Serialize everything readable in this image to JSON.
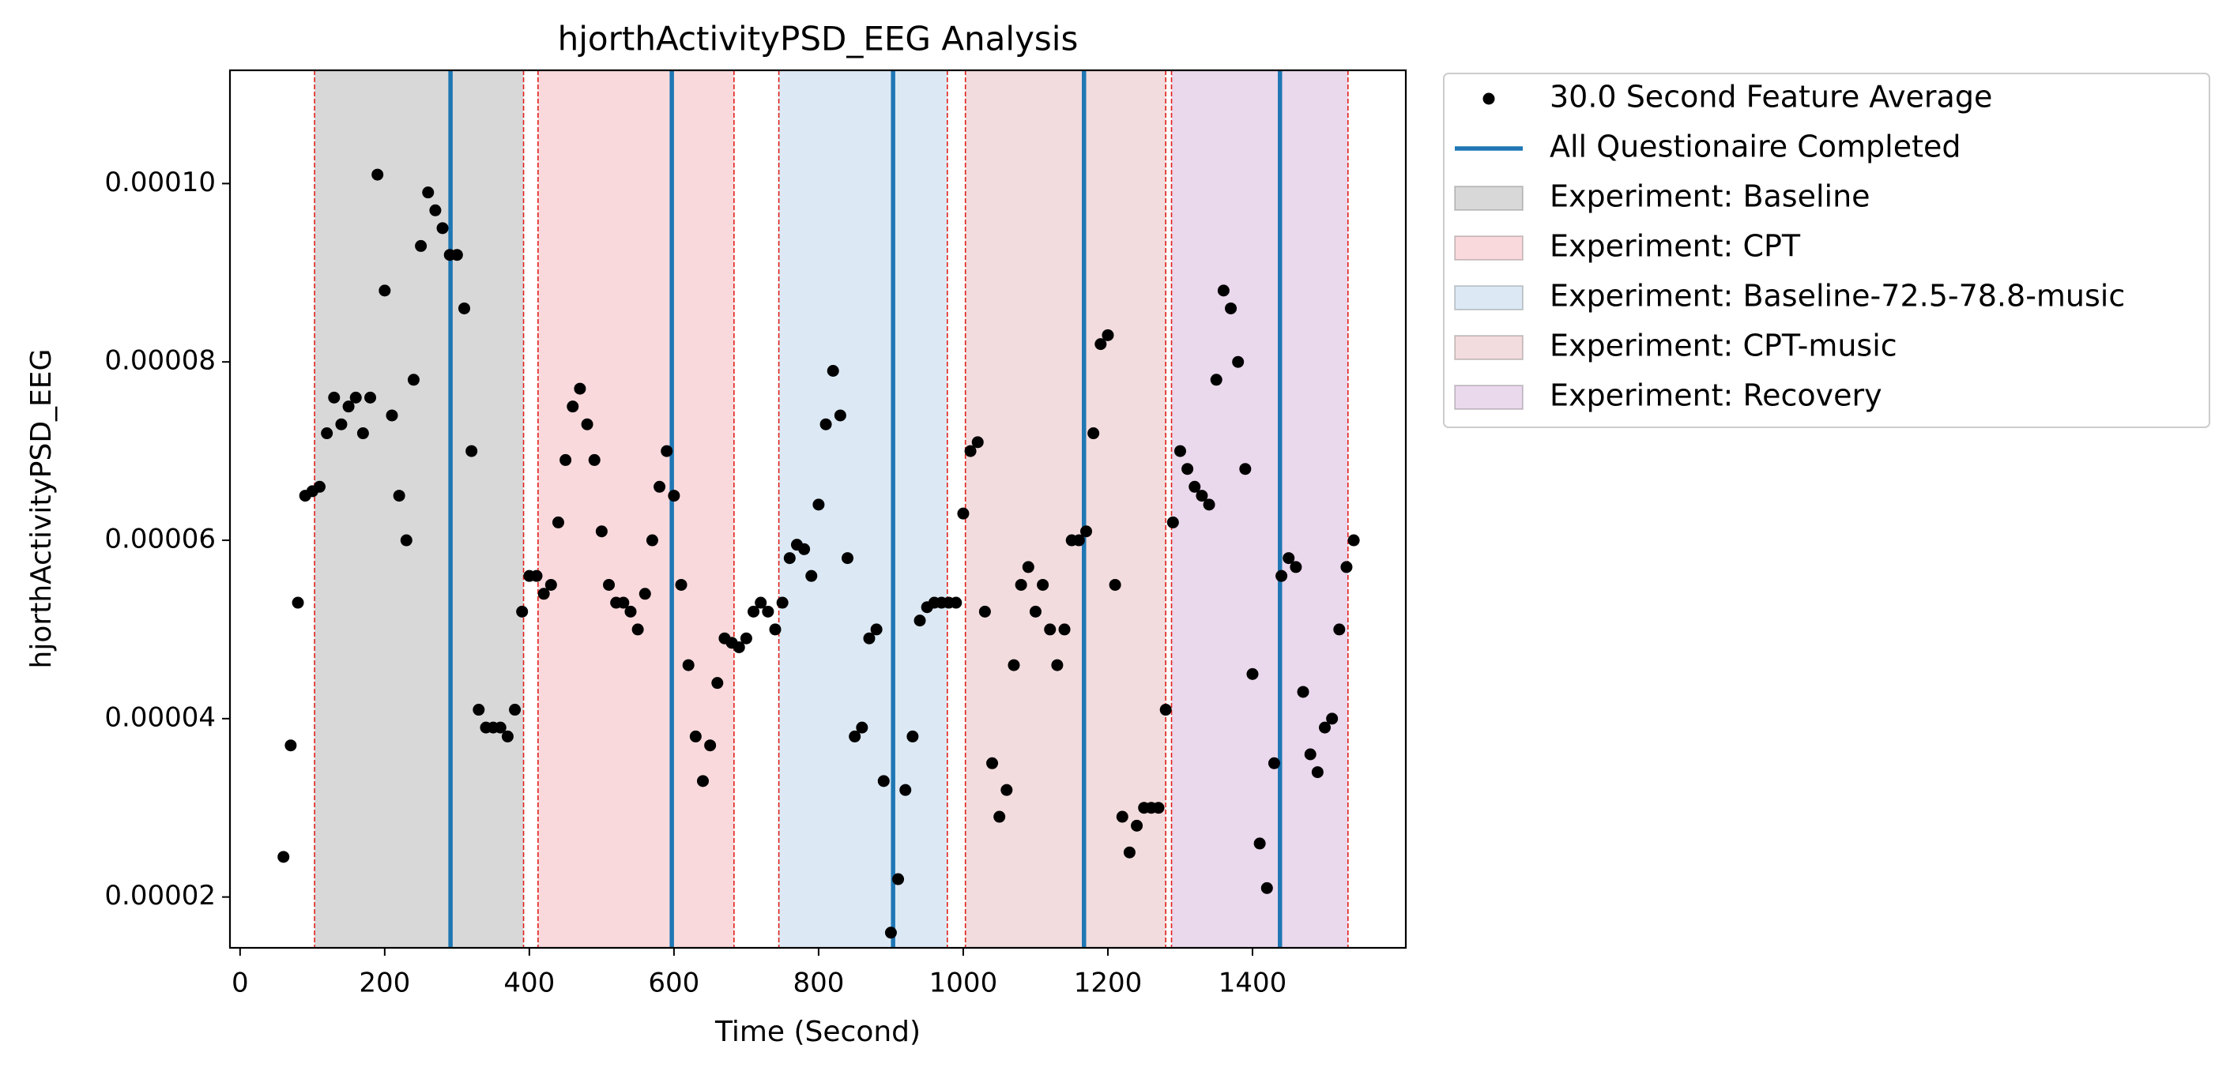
{
  "chart_data": {
    "type": "scatter",
    "title": "hjorthActivityPSD_EEG Analysis",
    "xlabel": "Time (Second)",
    "ylabel": "hjorthActivityPSD_EEG",
    "xlim": [
      -14,
      1612
    ],
    "ylim": [
      1.43e-05,
      0.0001127
    ],
    "xticks": [
      0,
      200,
      400,
      600,
      800,
      1000,
      1200,
      1400
    ],
    "yticks": [
      {
        "value": 2e-05,
        "label": "0.00002"
      },
      {
        "value": 4e-05,
        "label": "0.00004"
      },
      {
        "value": 6e-05,
        "label": "0.00006"
      },
      {
        "value": 8e-05,
        "label": "0.00008"
      },
      {
        "value": 0.0001,
        "label": "0.00010"
      }
    ],
    "spans": [
      {
        "name": "Experiment: Baseline",
        "color": "#d8d8d8",
        "start": 103,
        "end": 392
      },
      {
        "name": "Experiment: CPT",
        "color": "#f9d9dc",
        "start": 412,
        "end": 683
      },
      {
        "name": "Experiment: Baseline-72.5-78.8-music",
        "color": "#dce9f4",
        "start": 745,
        "end": 978
      },
      {
        "name": "Experiment: CPT-music",
        "color": "#f2dcdd",
        "start": 1003,
        "end": 1280
      },
      {
        "name": "Experiment: Recovery",
        "color": "#ead8ec",
        "start": 1288,
        "end": 1532
      }
    ],
    "span_edge_color": "#e0201b",
    "vlines": {
      "name": "All Questionaire Completed",
      "color": "#1f77b4",
      "x": [
        291,
        597,
        903,
        1167,
        1438
      ]
    },
    "series": [
      {
        "name": "30.0 Second Feature Average",
        "color": "#000000",
        "x": [
          60,
          70,
          80,
          90,
          100,
          110,
          120,
          130,
          140,
          150,
          160,
          170,
          180,
          190,
          200,
          210,
          220,
          230,
          240,
          250,
          260,
          270,
          280,
          290,
          300,
          310,
          320,
          330,
          340,
          350,
          360,
          370,
          380,
          390,
          400,
          410,
          420,
          430,
          440,
          450,
          460,
          470,
          480,
          490,
          500,
          510,
          520,
          530,
          540,
          550,
          560,
          570,
          580,
          590,
          600,
          610,
          620,
          630,
          640,
          650,
          660,
          670,
          680,
          690,
          700,
          710,
          720,
          730,
          740,
          750,
          760,
          770,
          780,
          790,
          800,
          810,
          820,
          830,
          840,
          850,
          860,
          870,
          880,
          890,
          900,
          910,
          920,
          930,
          940,
          950,
          960,
          970,
          980,
          990,
          1000,
          1010,
          1020,
          1030,
          1040,
          1050,
          1060,
          1070,
          1080,
          1090,
          1100,
          1110,
          1120,
          1130,
          1140,
          1150,
          1160,
          1170,
          1180,
          1190,
          1200,
          1210,
          1220,
          1230,
          1240,
          1250,
          1260,
          1270,
          1280,
          1290,
          1300,
          1310,
          1320,
          1330,
          1340,
          1350,
          1360,
          1370,
          1380,
          1390,
          1400,
          1410,
          1420,
          1430,
          1440,
          1450,
          1460,
          1470,
          1480,
          1490,
          1500,
          1510,
          1520,
          1530,
          1540
        ],
        "values": [
          2.45e-05,
          3.7e-05,
          5.3e-05,
          6.5e-05,
          6.55e-05,
          6.6e-05,
          7.2e-05,
          7.6e-05,
          7.3e-05,
          7.5e-05,
          7.6e-05,
          7.2e-05,
          7.6e-05,
          0.000101,
          8.8e-05,
          7.4e-05,
          6.5e-05,
          6e-05,
          7.8e-05,
          9.3e-05,
          9.9e-05,
          9.7e-05,
          9.5e-05,
          9.2e-05,
          9.2e-05,
          8.6e-05,
          7e-05,
          4.1e-05,
          3.9e-05,
          3.9e-05,
          3.9e-05,
          3.8e-05,
          4.1e-05,
          5.2e-05,
          5.6e-05,
          5.6e-05,
          5.4e-05,
          5.5e-05,
          6.2e-05,
          6.9e-05,
          7.5e-05,
          7.7e-05,
          7.3e-05,
          6.9e-05,
          6.1e-05,
          5.5e-05,
          5.3e-05,
          5.3e-05,
          5.2e-05,
          5e-05,
          5.4e-05,
          6e-05,
          6.6e-05,
          7e-05,
          6.5e-05,
          5.5e-05,
          4.6e-05,
          3.8e-05,
          3.3e-05,
          3.7e-05,
          4.4e-05,
          4.9e-05,
          4.85e-05,
          4.8e-05,
          4.9e-05,
          5.2e-05,
          5.3e-05,
          5.2e-05,
          5e-05,
          5.3e-05,
          5.8e-05,
          5.95e-05,
          5.9e-05,
          5.6e-05,
          6.4e-05,
          7.3e-05,
          7.9e-05,
          7.4e-05,
          5.8e-05,
          3.8e-05,
          3.9e-05,
          4.9e-05,
          5e-05,
          3.3e-05,
          1.6e-05,
          2.2e-05,
          3.2e-05,
          3.8e-05,
          5.1e-05,
          5.25e-05,
          5.3e-05,
          5.3e-05,
          5.3e-05,
          5.3e-05,
          6.3e-05,
          7e-05,
          7.1e-05,
          5.2e-05,
          3.5e-05,
          2.9e-05,
          3.2e-05,
          4.6e-05,
          5.5e-05,
          5.7e-05,
          5.2e-05,
          5.5e-05,
          5e-05,
          4.6e-05,
          5e-05,
          6e-05,
          6e-05,
          6.1e-05,
          7.2e-05,
          8.2e-05,
          8.3e-05,
          5.5e-05,
          2.9e-05,
          2.5e-05,
          2.8e-05,
          3e-05,
          3e-05,
          3e-05,
          4.1e-05,
          6.2e-05,
          7e-05,
          6.8e-05,
          6.6e-05,
          6.5e-05,
          6.4e-05,
          7.8e-05,
          8.8e-05,
          8.6e-05,
          8e-05,
          6.8e-05,
          4.5e-05,
          2.6e-05,
          2.1e-05,
          3.5e-05,
          5.6e-05,
          5.8e-05,
          5.7e-05,
          4.3e-05,
          3.6e-05,
          3.4e-05,
          3.9e-05,
          4e-05,
          5e-05,
          5.7e-05,
          6e-05
        ]
      }
    ]
  }
}
